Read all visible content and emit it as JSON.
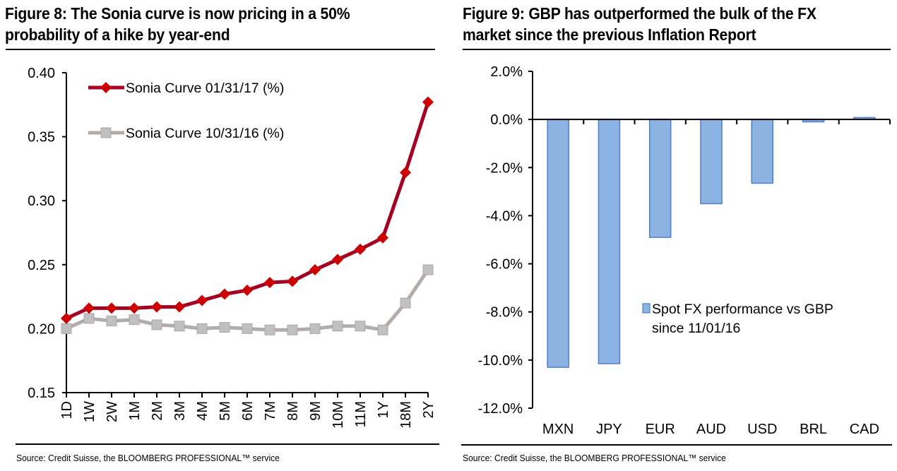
{
  "figure8": {
    "title_line1": "Figure 8: The Sonia curve is now pricing in a 50%",
    "title_line2": "probability of a hike by year-end",
    "source": "Source: Credit Suisse, the BLOOMBERG PROFESSIONAL™ service"
  },
  "figure9": {
    "title_line1": "Figure 9: GBP has outperformed the bulk of the FX",
    "title_line2": "market since the previous Inflation Report",
    "source": "Source: Credit Suisse, the BLOOMBERG PROFESSIONAL™ service"
  },
  "colors": {
    "red_series": "#a50021",
    "red_marker": "#cc0000",
    "gray_series": "#b3aca8",
    "gray_marker": "#c0c0c0",
    "bar_fill": "#8db3e2",
    "bar_edge": "#4a7fd1"
  },
  "chart_data": [
    {
      "type": "line",
      "title": "Figure 8: The Sonia curve is now pricing in a 50% probability of a hike by year-end",
      "xlabel": "",
      "ylabel": "",
      "x": [
        "1D",
        "1W",
        "2W",
        "1M",
        "2M",
        "3M",
        "4M",
        "5M",
        "6M",
        "7M",
        "8M",
        "9M",
        "10M",
        "11M",
        "1Y",
        "18M",
        "2Y"
      ],
      "ylim": [
        0.15,
        0.4
      ],
      "yticks": [
        "0.40",
        "0.35",
        "0.30",
        "0.25",
        "0.20",
        "0.15"
      ],
      "ytick_values": [
        0.4,
        0.35,
        0.3,
        0.25,
        0.2,
        0.15
      ],
      "grid": false,
      "legend_position": "top-left",
      "series": [
        {
          "name": "Sonia Curve 01/31/17 (%)",
          "marker": "diamond",
          "values": [
            0.208,
            0.216,
            0.216,
            0.216,
            0.217,
            0.217,
            0.222,
            0.227,
            0.23,
            0.236,
            0.237,
            0.246,
            0.254,
            0.262,
            0.271,
            0.322,
            0.377
          ]
        },
        {
          "name": "Sonia Curve 10/31/16 (%)",
          "marker": "square",
          "values": [
            0.2,
            0.208,
            0.206,
            0.207,
            0.203,
            0.202,
            0.2,
            0.201,
            0.2,
            0.199,
            0.199,
            0.2,
            0.202,
            0.202,
            0.199,
            0.22,
            0.246
          ]
        }
      ]
    },
    {
      "type": "bar",
      "title": "Figure 9: GBP has outperformed the bulk of the FX market since the previous Inflation Report",
      "xlabel": "",
      "ylabel": "",
      "categories": [
        "MXN",
        "JPY",
        "EUR",
        "AUD",
        "USD",
        "BRL",
        "CAD"
      ],
      "ylim": [
        -12.0,
        2.0
      ],
      "yticks": [
        "2.0%",
        "0.0%",
        "-2.0%",
        "-4.0%",
        "-6.0%",
        "-8.0%",
        "-10.0%",
        "-12.0%"
      ],
      "ytick_values": [
        2,
        0,
        -2,
        -4,
        -6,
        -8,
        -10,
        -12
      ],
      "grid": false,
      "legend_position": "center-right",
      "series": [
        {
          "name": "Spot FX performance vs GBP since 11/01/16",
          "legend_line1": "Spot FX performance vs GBP",
          "legend_line2": "since 11/01/16",
          "values": [
            -10.3,
            -10.15,
            -4.9,
            -3.5,
            -2.65,
            -0.1,
            0.08
          ]
        }
      ]
    }
  ]
}
